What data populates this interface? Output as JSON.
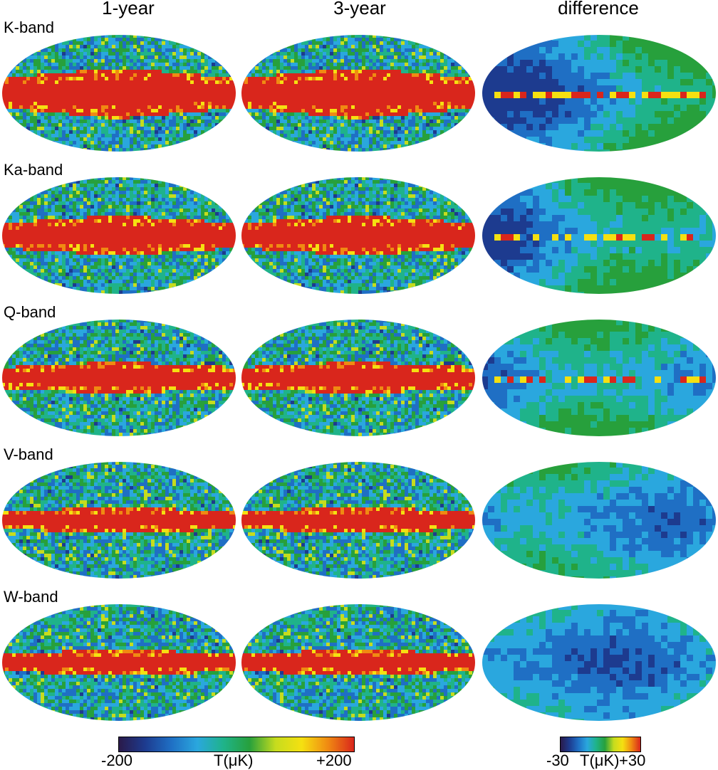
{
  "columns": {
    "one_year": "1-year",
    "three_year": "3-year",
    "difference": "difference"
  },
  "bands": [
    {
      "label": "K-band",
      "plane_strength": 1.0,
      "diff_strength": 1.0
    },
    {
      "label": "Ka-band",
      "plane_strength": 0.75,
      "diff_strength": 0.75
    },
    {
      "label": "Q-band",
      "plane_strength": 0.55,
      "diff_strength": 0.45
    },
    {
      "label": "V-band",
      "plane_strength": 0.4,
      "diff_strength": 0.1
    },
    {
      "label": "W-band",
      "plane_strength": 0.4,
      "diff_strength": 0.1
    }
  ],
  "colorbars": {
    "main": {
      "min_label": "-200",
      "unit_label": "T(μK)",
      "max_label": "+200"
    },
    "diff": {
      "min_label": "-30",
      "unit_label": "T(μK)",
      "max_label": "+30"
    }
  },
  "colors": {
    "map_ramp": [
      "#2a1a4a",
      "#1d3b8f",
      "#1f6fc4",
      "#2aa7de",
      "#1fb38a",
      "#27a03c",
      "#c6dc1e",
      "#f5e011",
      "#f08a12",
      "#d9261c"
    ],
    "galactic_plane": "#d9261c"
  }
}
